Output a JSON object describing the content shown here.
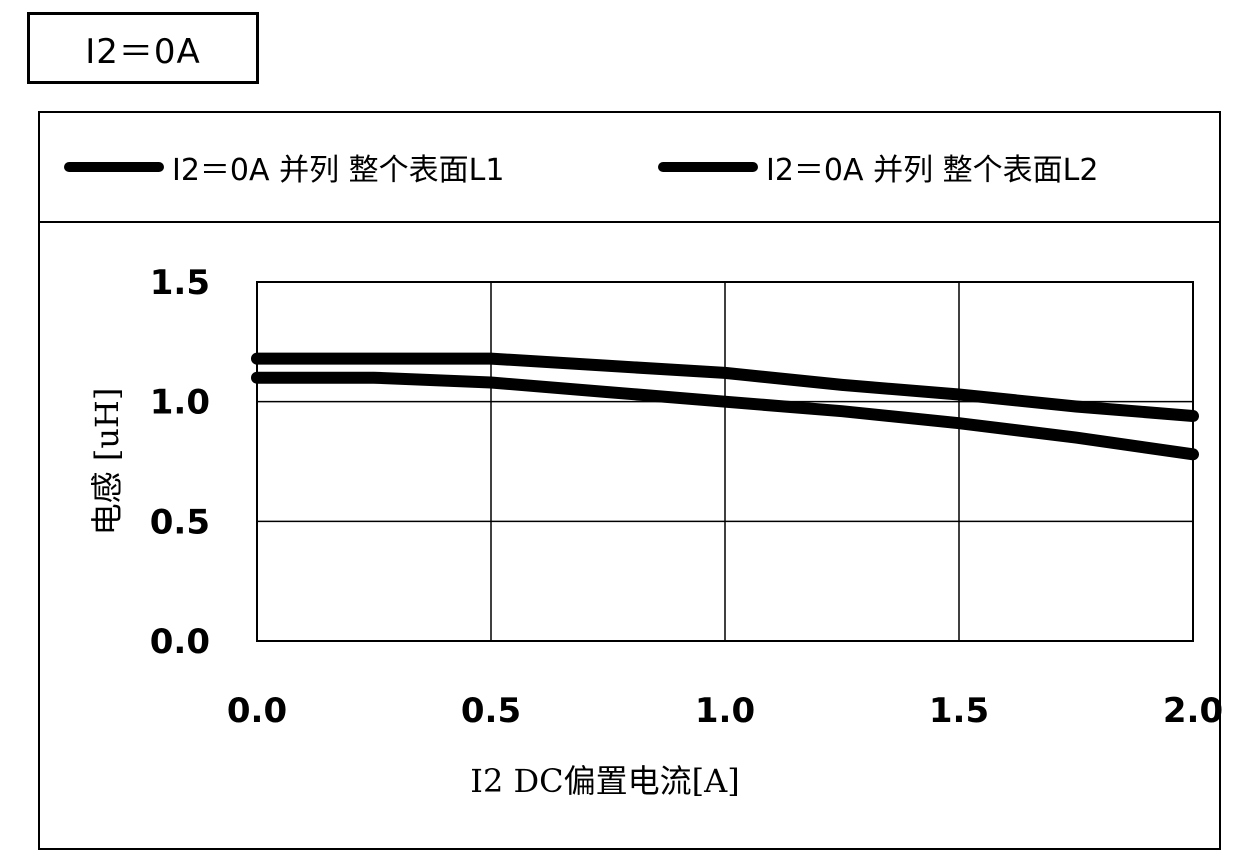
{
  "figure_label": "I2＝0A",
  "chart_data": {
    "type": "line",
    "title": "",
    "xlabel": "I2 DC偏置电流[A]",
    "ylabel": "电感 [uH]",
    "xlim": [
      0.0,
      2.0
    ],
    "ylim": [
      0.0,
      1.5
    ],
    "x_ticks": [
      "0.0",
      "0.5",
      "1.0",
      "1.5",
      "2.0"
    ],
    "y_ticks": [
      "0.0",
      "0.5",
      "1.0",
      "1.5"
    ],
    "grid": true,
    "legend_position": "top",
    "series": [
      {
        "name": "I2＝0A 并列 整个表面L1",
        "color": "#000000",
        "x": [
          0.0,
          0.25,
          0.5,
          0.75,
          1.0,
          1.25,
          1.5,
          1.75,
          2.0
        ],
        "y": [
          1.1,
          1.1,
          1.08,
          1.04,
          1.0,
          0.96,
          0.91,
          0.85,
          0.78
        ]
      },
      {
        "name": "I2＝0A 并列 整个表面L2",
        "color": "#000000",
        "x": [
          0.0,
          0.25,
          0.5,
          0.75,
          1.0,
          1.25,
          1.5,
          1.75,
          2.0
        ],
        "y": [
          1.18,
          1.18,
          1.18,
          1.15,
          1.12,
          1.07,
          1.03,
          0.98,
          0.94
        ]
      }
    ]
  }
}
